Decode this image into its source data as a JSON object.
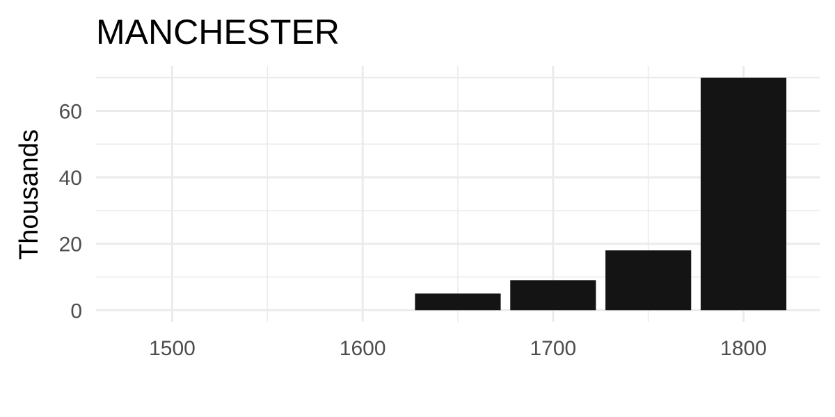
{
  "chart_data": {
    "type": "bar",
    "title": "MANCHESTER",
    "xlabel": "",
    "ylabel": "Thousands",
    "x": [
      1500,
      1550,
      1600,
      1650,
      1700,
      1750,
      1800
    ],
    "values": [
      0,
      0,
      0,
      5,
      9,
      18,
      70
    ],
    "bar_width": 45,
    "xlim": [
      1460,
      1840
    ],
    "ylim": [
      -3.5,
      73.5
    ],
    "x_ticks": [
      1500,
      1600,
      1700,
      1800
    ],
    "x_tick_labels": [
      "1500",
      "1600",
      "1700",
      "1800"
    ],
    "y_ticks": [
      0,
      20,
      40,
      60
    ],
    "y_tick_labels": [
      "0",
      "20",
      "40",
      "60"
    ],
    "grid": true,
    "bar_color": "#141414"
  }
}
